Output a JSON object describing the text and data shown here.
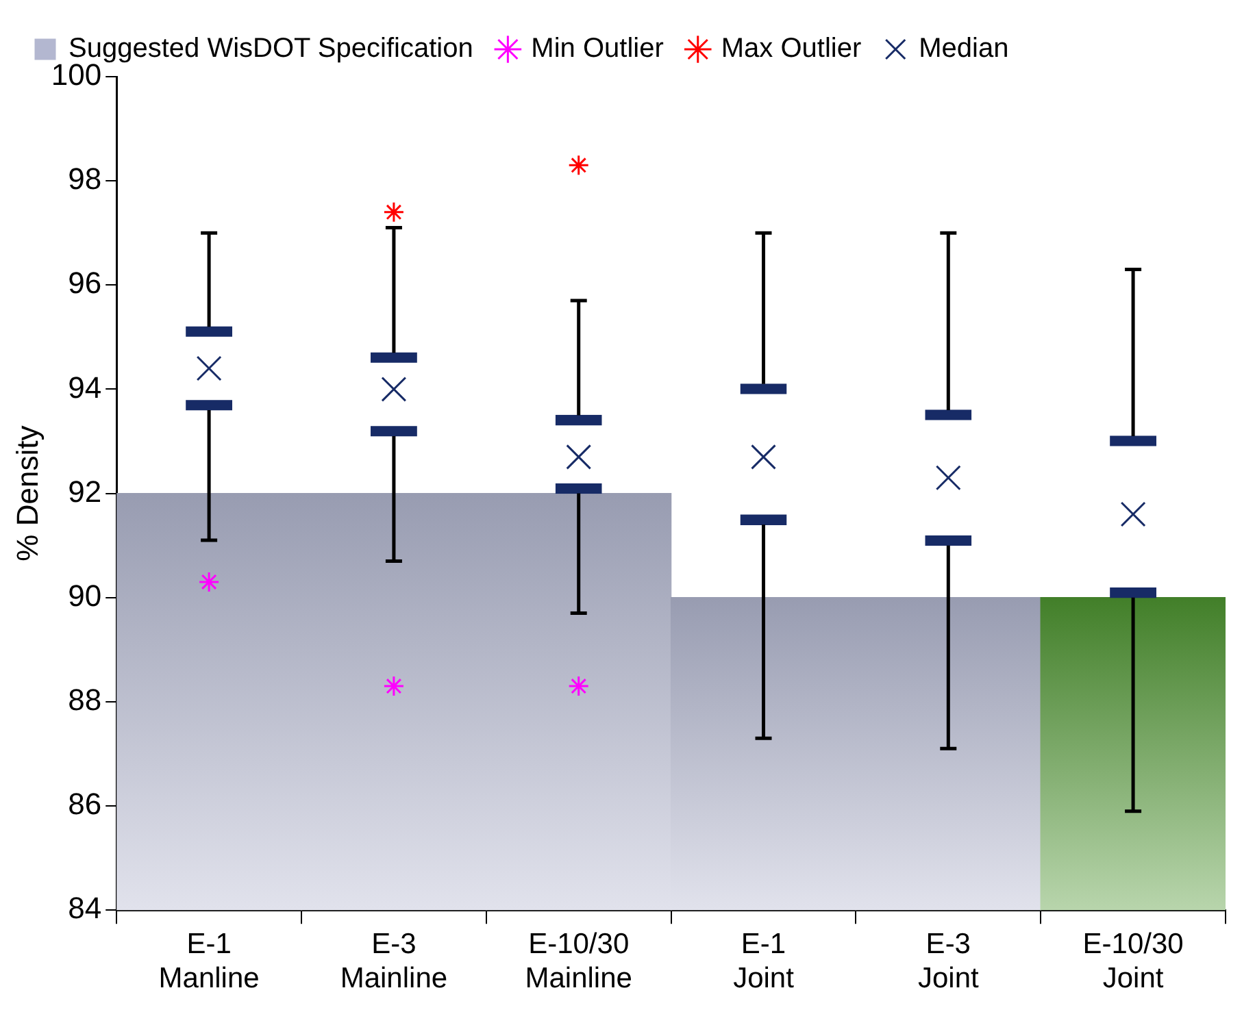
{
  "chart_data": {
    "type": "bar",
    "ylabel": "% Density",
    "categories": [
      "E-1\nManline",
      "E-3\nMainline",
      "E-10/30\nMainline",
      "E-1\nJoint",
      "E-3\nJoint",
      "E-10/30\nJoint"
    ],
    "ylim": [
      84,
      100
    ],
    "yticks": [
      84,
      86,
      88,
      90,
      92,
      94,
      96,
      98,
      100
    ],
    "grid": false,
    "legend": "top",
    "series": [
      {
        "name": "Suggested WisDOT Specification",
        "type": "bar",
        "color": "#b3b7d0",
        "colors": [
          "#b3b7d0",
          "#b3b7d0",
          "#b3b7d0",
          "#b3b7d0",
          "#b3b7d0",
          "#4e9530"
        ],
        "values": [
          92,
          92,
          92,
          90,
          90,
          90
        ]
      },
      {
        "name": "Min Outlier",
        "type": "scatter",
        "marker": "cross",
        "color": "#ff00ff",
        "x": [
          "E-1\nManline",
          "E-3\nMainline",
          "E-10/30\nMainline"
        ],
        "values": [
          90.3,
          88.3,
          88.3
        ]
      },
      {
        "name": "Max Outlier",
        "type": "scatter",
        "marker": "cross",
        "color": "#ff0000",
        "x": [
          "E-3\nMainline",
          "E-10/30\nMainline"
        ],
        "values": [
          97.4,
          98.3
        ]
      },
      {
        "name": "Median",
        "type": "box",
        "marker": "cross",
        "color": "#172b66",
        "boxes": [
          {
            "low": 91.1,
            "q1": 93.6,
            "median": 94.4,
            "q3": 95.2,
            "high": 97.0
          },
          {
            "low": 90.7,
            "q1": 93.1,
            "median": 94.0,
            "q3": 94.7,
            "high": 97.1
          },
          {
            "low": 89.7,
            "q1": 92.0,
            "median": 92.7,
            "q3": 93.5,
            "high": 95.7
          },
          {
            "low": 87.3,
            "q1": 91.4,
            "median": 92.7,
            "q3": 94.1,
            "high": 97.0
          },
          {
            "low": 87.1,
            "q1": 91.0,
            "median": 92.3,
            "q3": 93.6,
            "high": 97.0
          },
          {
            "low": 85.9,
            "q1": 90.0,
            "median": 91.6,
            "q3": 93.1,
            "high": 96.3
          }
        ]
      }
    ]
  }
}
